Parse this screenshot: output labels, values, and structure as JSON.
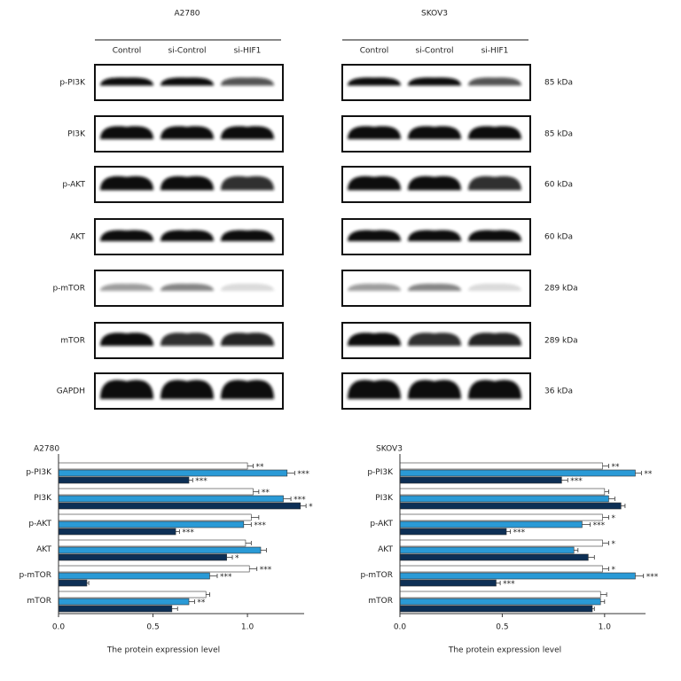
{
  "blots": {
    "panels": [
      {
        "title": "A2780",
        "lanes": [
          "Control",
          "si-Control",
          "si-HIF1"
        ]
      },
      {
        "title": "SKOV3",
        "lanes": [
          "Control",
          "si-Control",
          "si-HIF1"
        ]
      }
    ],
    "rows": [
      {
        "label": "p-PI3K",
        "size": "85 kDa"
      },
      {
        "label": "PI3K",
        "size": "85 kDa"
      },
      {
        "label": "p-AKT",
        "size": "60 kDa"
      },
      {
        "label": "AKT",
        "size": "60 kDa"
      },
      {
        "label": "p-mTOR",
        "size": "289 kDa"
      },
      {
        "label": "mTOR",
        "size": "289 kDa"
      },
      {
        "label": "GAPDH",
        "size": "36 kDa"
      }
    ]
  },
  "chart_data": [
    {
      "type": "bar",
      "orientation": "horizontal",
      "title": "A2780",
      "xlabel": "The protein expression level",
      "categories": [
        "p-PI3K",
        "PI3K",
        "p-AKT",
        "AKT",
        "p-mTOR",
        "mTOR"
      ],
      "series": [
        {
          "color": "#ffffff",
          "values": [
            1.0,
            1.03,
            1.02,
            0.99,
            1.01,
            0.78
          ],
          "errors": [
            0.03,
            0.03,
            0.04,
            0.03,
            0.04,
            0.02
          ],
          "annotations": [
            "**",
            "**",
            null,
            null,
            "***",
            null
          ]
        },
        {
          "color": "#2a9ad6",
          "values": [
            1.21,
            1.19,
            0.98,
            1.07,
            0.8,
            0.69
          ],
          "errors": [
            0.04,
            0.04,
            0.04,
            0.03,
            0.04,
            0.03
          ],
          "annotations": [
            "***",
            "***",
            "***",
            null,
            "***",
            "**"
          ]
        },
        {
          "color": "#0d2f55",
          "values": [
            0.69,
            1.28,
            0.62,
            0.89,
            0.15,
            0.6
          ],
          "errors": [
            0.02,
            0.03,
            0.02,
            0.03,
            0.01,
            0.03
          ],
          "annotations": [
            "***",
            "*",
            "***",
            "*",
            null,
            null
          ]
        }
      ],
      "xlim": [
        0,
        1.3
      ],
      "xticks": [
        {
          "value": 0,
          "label": "0.0"
        },
        0.5,
        {
          "value": 1,
          "label": "1.0"
        }
      ]
    },
    {
      "type": "bar",
      "orientation": "horizontal",
      "title": "SKOV3",
      "xlabel": "The protein expression level",
      "categories": [
        "p-PI3K",
        "PI3K",
        "p-AKT",
        "AKT",
        "p-mTOR",
        "mTOR"
      ],
      "series": [
        {
          "color": "#ffffff",
          "values": [
            0.99,
            1.0,
            0.99,
            0.99,
            0.99,
            0.98
          ],
          "errors": [
            0.03,
            0.02,
            0.03,
            0.03,
            0.03,
            0.03
          ],
          "annotations": [
            "**",
            null,
            "*",
            "*",
            "*",
            null
          ]
        },
        {
          "color": "#2a9ad6",
          "values": [
            1.15,
            1.02,
            0.89,
            0.85,
            1.15,
            0.98
          ],
          "errors": [
            0.03,
            0.03,
            0.04,
            0.02,
            0.04,
            0.02
          ],
          "annotations": [
            "**",
            null,
            "***",
            null,
            "***",
            null
          ]
        },
        {
          "color": "#0d2f55",
          "values": [
            0.79,
            1.08,
            0.52,
            0.92,
            0.47,
            0.94
          ],
          "errors": [
            0.03,
            0.02,
            0.02,
            0.03,
            0.02,
            0.01
          ],
          "annotations": [
            "***",
            null,
            "***",
            null,
            "***",
            null
          ]
        }
      ],
      "xlim": [
        0,
        1.2
      ],
      "xticks": [
        {
          "value": 0,
          "label": "0.0"
        },
        0.5,
        {
          "value": 1,
          "label": "1.0"
        }
      ]
    }
  ]
}
